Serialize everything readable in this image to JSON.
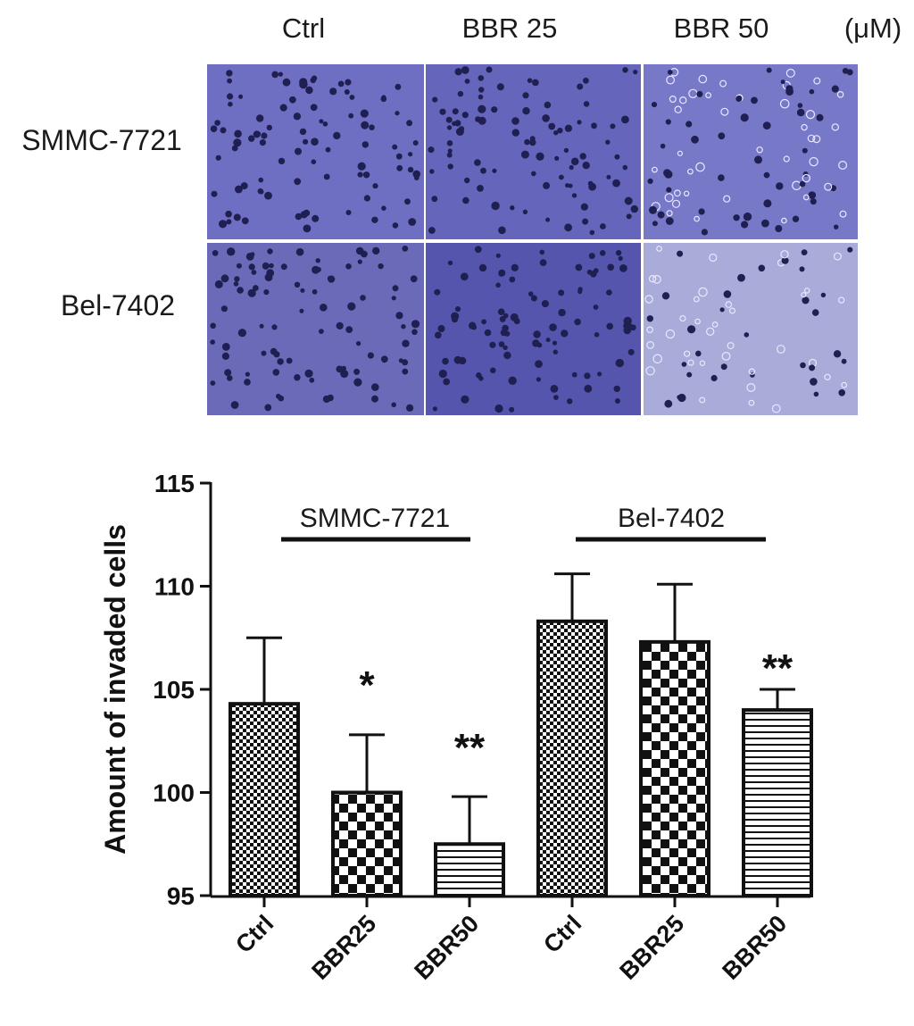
{
  "micrographs": {
    "columns": [
      "Ctrl",
      "BBR 25",
      "BBR 50"
    ],
    "unit": "(μM)",
    "rows": [
      "SMMC-7721",
      "Bel-7402"
    ],
    "stain_color": "#6b6bc0",
    "cell_color": "#1f1f52"
  },
  "chart_data": {
    "type": "bar",
    "ylabel": "Amount of invaded cells",
    "ylim": [
      95,
      115
    ],
    "yticks": [
      95,
      100,
      105,
      110,
      115
    ],
    "categories": [
      "Ctrl",
      "BBR25",
      "BBR50",
      "Ctrl",
      "BBR25",
      "BBR50"
    ],
    "values": [
      104.3,
      100.0,
      97.5,
      108.3,
      107.3,
      104.0
    ],
    "errors": [
      3.2,
      2.8,
      2.3,
      2.3,
      2.8,
      1.0
    ],
    "significance": [
      "",
      "*",
      "**",
      "",
      "",
      "**"
    ],
    "patterns": [
      "fine-checker",
      "checker",
      "horizontal-lines",
      "fine-checker",
      "checker",
      "horizontal-lines"
    ],
    "groups": [
      {
        "name": "SMMC-7721",
        "members": [
          0,
          1,
          2
        ]
      },
      {
        "name": "Bel-7402",
        "members": [
          3,
          4,
          5
        ]
      }
    ],
    "grid": false,
    "legend": "none"
  }
}
